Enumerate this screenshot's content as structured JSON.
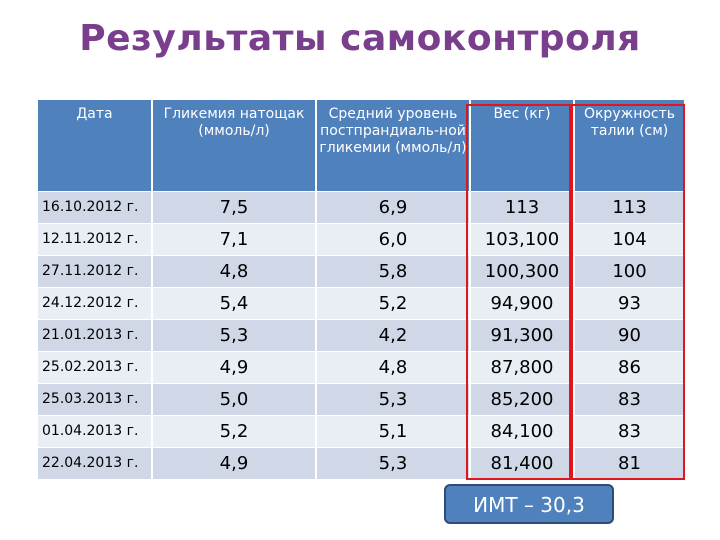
{
  "title": "Результаты самоконтроля",
  "table": {
    "headers": [
      "Дата",
      "Гликемия натощак (ммоль/л)",
      "Средний уровень постпрандиаль-ной гликемии (ммоль/л)",
      "Вес (кг)",
      "Окружность талии (см)"
    ],
    "rows": [
      [
        "16.10.2012 г.",
        "7,5",
        "6,9",
        "113",
        "113"
      ],
      [
        "12.11.2012 г.",
        "7,1",
        "6,0",
        "103,100",
        "104"
      ],
      [
        "27.11.2012 г.",
        "4,8",
        "5,8",
        "100,300",
        "100"
      ],
      [
        "24.12.2012 г.",
        "5,4",
        "5,2",
        "94,900",
        "93"
      ],
      [
        "21.01.2013 г.",
        "5,3",
        "4,2",
        "91,300",
        "90"
      ],
      [
        "25.02.2013 г.",
        "4,9",
        "4,8",
        "87,800",
        "86"
      ],
      [
        "25.03.2013 г.",
        "5,0",
        "5,3",
        "85,200",
        "83"
      ],
      [
        "01.04.2013 г.",
        "5,2",
        "5,1",
        "84,100",
        "83"
      ],
      [
        "22.04.2013 г.",
        "4,9",
        "5,3",
        "81,400",
        "81"
      ]
    ]
  },
  "bmi_label": "ИМТ – 30,3",
  "colors": {
    "title": "#7a3f8c",
    "header_bg": "#4f81bd",
    "row_odd": "#d0d8e8",
    "row_even": "#e9edf4",
    "highlight_border": "#e0161e"
  }
}
